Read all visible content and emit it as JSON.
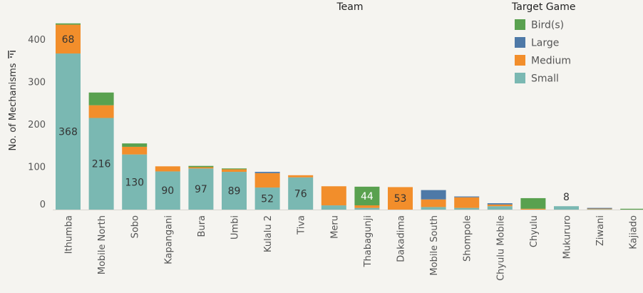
{
  "chart_data": {
    "type": "bar",
    "stacked": true,
    "header": "Team",
    "ylabel": "No. of Mechanisms",
    "ylim": [
      -30,
      450
    ],
    "yticks": [
      0,
      100,
      200,
      300,
      400
    ],
    "grid": false,
    "legend": {
      "title": "Target Game",
      "placement": "top-right"
    },
    "categories": [
      "Ithumba",
      "Mobile North",
      "Sobo",
      "Kapangani",
      "Bura",
      "Umbi",
      "Kulalu 2",
      "Tiva",
      "Meru",
      "Thabagunji",
      "Dakadima",
      "Mobile South",
      "Shompole",
      "Chyulu Mobile",
      "Chyulu",
      "Mukururo",
      "Ziwani",
      "Kajiado"
    ],
    "series": [
      {
        "name": "Small",
        "color": "#7ab8b2",
        "values": [
          368,
          216,
          130,
          90,
          97,
          89,
          52,
          76,
          10,
          4,
          0,
          6,
          4,
          8,
          0,
          8,
          1,
          0
        ]
      },
      {
        "name": "Medium",
        "color": "#f28e2b",
        "values": [
          68,
          30,
          18,
          12,
          3,
          6,
          34,
          5,
          45,
          6,
          53,
          18,
          25,
          4,
          2,
          0,
          2,
          0
        ]
      },
      {
        "name": "Large",
        "color": "#4e79a7",
        "values": [
          0,
          0,
          0,
          0,
          0,
          0,
          3,
          0,
          0,
          0,
          0,
          22,
          2,
          3,
          0,
          0,
          1,
          0
        ]
      },
      {
        "name": "Bird(s)",
        "color": "#59a14f",
        "values": [
          3,
          30,
          8,
          0,
          3,
          2,
          0,
          0,
          0,
          44,
          0,
          0,
          0,
          0,
          25,
          0,
          0,
          2
        ]
      }
    ],
    "data_labels": [
      {
        "category": "Ithumba",
        "series": "Medium",
        "text": "68"
      },
      {
        "category": "Ithumba",
        "series": "Small",
        "text": "368"
      },
      {
        "category": "Mobile North",
        "series": "Small",
        "text": "216"
      },
      {
        "category": "Sobo",
        "series": "Small",
        "text": "130"
      },
      {
        "category": "Kapangani",
        "series": "Small",
        "text": "90"
      },
      {
        "category": "Bura",
        "series": "Small",
        "text": "97"
      },
      {
        "category": "Umbi",
        "series": "Small",
        "text": "89"
      },
      {
        "category": "Kulalu 2",
        "series": "Small",
        "text": "52"
      },
      {
        "category": "Tiva",
        "series": "Small",
        "text": "76"
      },
      {
        "category": "Thabagunji",
        "series": "Bird(s)",
        "text": "44",
        "light": true
      },
      {
        "category": "Dakadima",
        "series": "Medium",
        "text": "53"
      },
      {
        "category": "Mukururo",
        "series": "Small",
        "text": "8",
        "above": true
      }
    ]
  }
}
